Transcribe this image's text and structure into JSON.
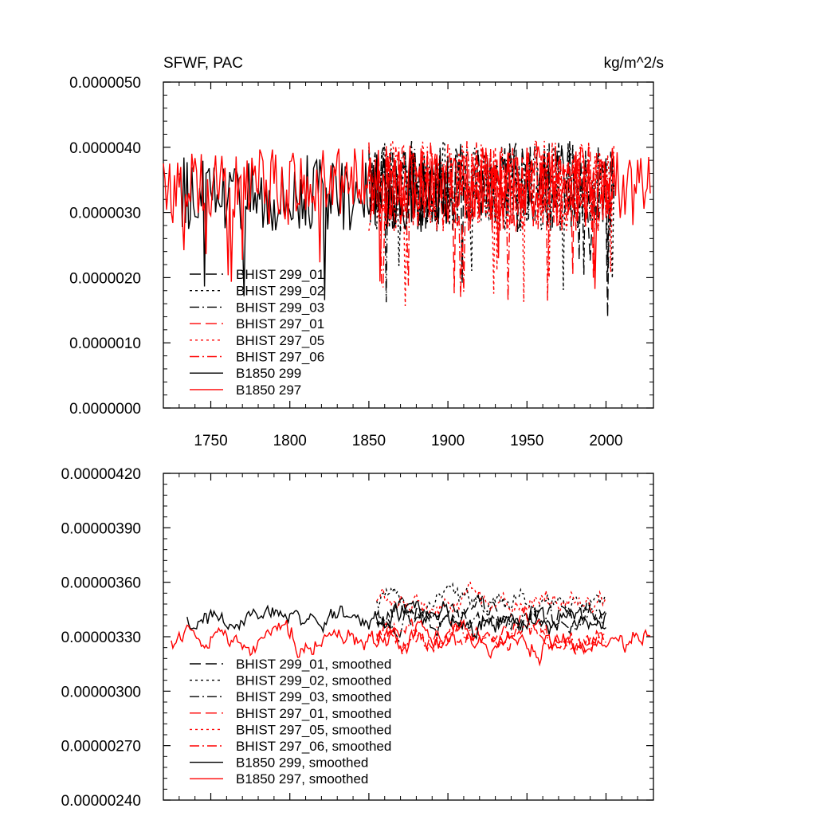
{
  "chart_data": [
    {
      "type": "line",
      "title": "SFWF, PAC",
      "units": "kg/m^2/s",
      "xlim": [
        1720,
        2030
      ],
      "ylim": [
        0.0,
        5e-06
      ],
      "xticks": [
        1750,
        1800,
        1850,
        1900,
        1950,
        2000
      ],
      "xtick_labels": [
        "1750",
        "1800",
        "1850",
        "1900",
        "1950",
        "2000"
      ],
      "yticks": [
        0.0,
        1e-06,
        2e-06,
        3e-06,
        4e-06,
        5e-06
      ],
      "ytick_labels": [
        "0.0000000",
        "0.0000010",
        "0.0000020",
        "0.0000030",
        "0.0000040",
        "0.0000050"
      ],
      "legend_position": "lower-left",
      "series": [
        {
          "name": "BHIST 299_01",
          "color": "#000000",
          "dash": "long-dash",
          "x_range": [
            1850,
            2005
          ],
          "mean": 3.4e-06,
          "amp": 7e-07,
          "seed": 11
        },
        {
          "name": "BHIST 299_02",
          "color": "#000000",
          "dash": "dot",
          "x_range": [
            1850,
            2005
          ],
          "mean": 3.4e-06,
          "amp": 7e-07,
          "seed": 23
        },
        {
          "name": "BHIST 299_03",
          "color": "#000000",
          "dash": "dash-dot",
          "x_range": [
            1850,
            2005
          ],
          "mean": 3.4e-06,
          "amp": 7e-07,
          "seed": 37
        },
        {
          "name": "BHIST 297_01",
          "color": "#ff0000",
          "dash": "long-dash",
          "x_range": [
            1850,
            2005
          ],
          "mean": 3.4e-06,
          "amp": 7e-07,
          "seed": 41
        },
        {
          "name": "BHIST 297_05",
          "color": "#ff0000",
          "dash": "dot",
          "x_range": [
            1850,
            2005
          ],
          "mean": 3.4e-06,
          "amp": 7e-07,
          "seed": 53
        },
        {
          "name": "BHIST 297_06",
          "color": "#ff0000",
          "dash": "dash-dot",
          "x_range": [
            1850,
            2005
          ],
          "mean": 3.4e-06,
          "amp": 7e-07,
          "seed": 67
        },
        {
          "name": "B1850 299",
          "color": "#000000",
          "dash": "solid",
          "x_range": [
            1730,
            1900
          ],
          "mean": 3.3e-06,
          "amp": 6e-07,
          "seed": 79
        },
        {
          "name": "B1850 297",
          "color": "#ff0000",
          "dash": "solid",
          "x_range": [
            1720,
            2028
          ],
          "mean": 3.4e-06,
          "amp": 6e-07,
          "seed": 97
        }
      ]
    },
    {
      "type": "line",
      "title": "",
      "xlim": [
        1720,
        2030
      ],
      "ylim": [
        2.4e-06,
        4.2e-06
      ],
      "xticks": [
        1750,
        1800,
        1850,
        1900,
        1950,
        2000
      ],
      "xtick_labels": [
        "",
        "",
        "",
        "",
        "",
        ""
      ],
      "yticks": [
        2.4e-06,
        2.7e-06,
        3e-06,
        3.3e-06,
        3.6e-06,
        3.9e-06,
        4.2e-06
      ],
      "ytick_labels": [
        "0.00000240",
        "0.00000270",
        "0.00000300",
        "0.00000330",
        "0.00000360",
        "0.00000390",
        "0.00000420"
      ],
      "legend_position": "lower-left",
      "series": [
        {
          "name": "BHIST 299_01, smoothed",
          "color": "#000000",
          "dash": "long-dash",
          "x_range": [
            1855,
            2000
          ],
          "mean": 3.4e-06,
          "amp": 2e-07,
          "seed": 111
        },
        {
          "name": "BHIST 299_02, smoothed",
          "color": "#000000",
          "dash": "dot",
          "x_range": [
            1855,
            2000
          ],
          "mean": 3.5e-06,
          "amp": 2e-07,
          "seed": 123
        },
        {
          "name": "BHIST 299_03, smoothed",
          "color": "#000000",
          "dash": "dash-dot",
          "x_range": [
            1855,
            2000
          ],
          "mean": 3.4e-06,
          "amp": 2e-07,
          "seed": 137
        },
        {
          "name": "BHIST 297_01, smoothed",
          "color": "#ff0000",
          "dash": "long-dash",
          "x_range": [
            1855,
            2000
          ],
          "mean": 3.3e-06,
          "amp": 2e-07,
          "seed": 141
        },
        {
          "name": "BHIST 297_05, smoothed",
          "color": "#ff0000",
          "dash": "dot",
          "x_range": [
            1855,
            2000
          ],
          "mean": 3.5e-06,
          "amp": 2e-07,
          "seed": 153
        },
        {
          "name": "BHIST 297_06, smoothed",
          "color": "#ff0000",
          "dash": "dash-dot",
          "x_range": [
            1855,
            2000
          ],
          "mean": 3.3e-06,
          "amp": 2e-07,
          "seed": 167
        },
        {
          "name": "B1850 299, smoothed",
          "color": "#000000",
          "dash": "solid",
          "x_range": [
            1735,
            2000
          ],
          "mean": 3.4e-06,
          "amp": 2e-07,
          "seed": 179
        },
        {
          "name": "B1850 297, smoothed",
          "color": "#ff0000",
          "dash": "solid",
          "x_range": [
            1725,
            2028
          ],
          "mean": 3.3e-06,
          "amp": 2e-07,
          "seed": 197
        }
      ]
    }
  ]
}
